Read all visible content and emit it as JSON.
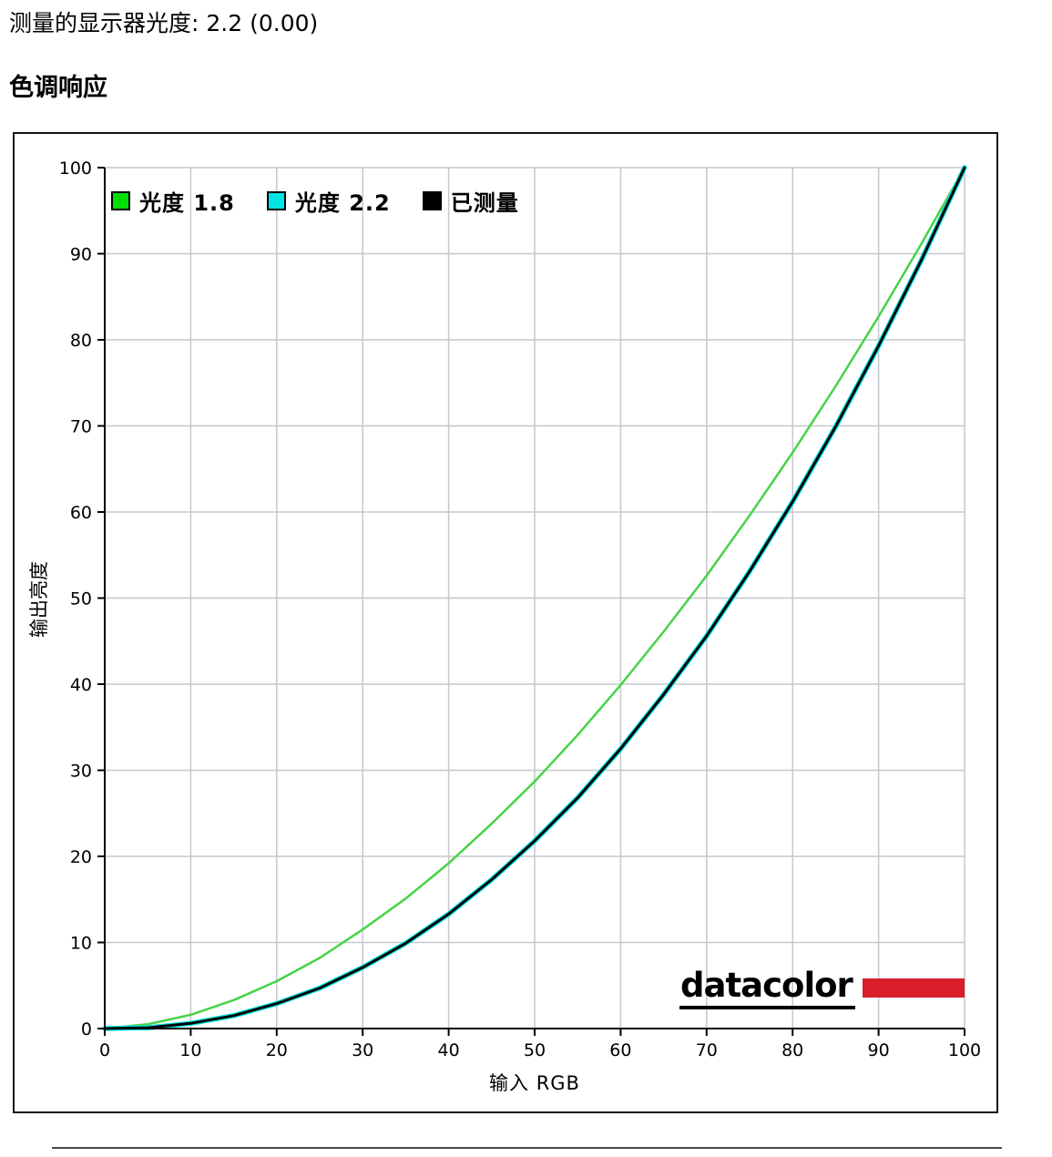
{
  "header": {
    "measured_label": "测量的显示器光度:",
    "measured_value": "2.2 (0.00)",
    "section_title": "色调响应"
  },
  "chart_data": {
    "type": "line",
    "title": "",
    "xlabel": "输入 RGB",
    "ylabel": "输出亮度",
    "xlim": [
      0,
      100
    ],
    "ylim": [
      0,
      100
    ],
    "xticks": [
      0,
      10,
      20,
      30,
      40,
      50,
      60,
      70,
      80,
      90,
      100
    ],
    "yticks": [
      0,
      10,
      20,
      30,
      40,
      50,
      60,
      70,
      80,
      90,
      100
    ],
    "grid": true,
    "grid_color": "#c4c8cc",
    "legend_position": "top-left",
    "legend": [
      {
        "label": "光度 1.8",
        "color": "#00dd00"
      },
      {
        "label": "光度 2.2",
        "color": "#00e5e5"
      },
      {
        "label": "已测量",
        "color": "#000000"
      }
    ],
    "x": [
      0,
      5,
      10,
      15,
      20,
      25,
      30,
      35,
      40,
      45,
      50,
      55,
      60,
      65,
      70,
      75,
      80,
      85,
      90,
      95,
      100
    ],
    "series": [
      {
        "name": "光度 1.8",
        "color": "#46d346",
        "width": 2.5,
        "values": [
          0,
          0.5,
          1.6,
          3.3,
          5.5,
          8.2,
          11.5,
          15.1,
          19.2,
          23.8,
          28.7,
          34.1,
          39.9,
          46.1,
          52.6,
          59.6,
          66.9,
          74.6,
          82.7,
          91.2,
          100
        ]
      },
      {
        "name": "光度 2.2",
        "color": "#00e5e5",
        "width": 5.5,
        "values": [
          0,
          0.1,
          0.6,
          1.5,
          2.9,
          4.7,
          7.1,
          9.9,
          13.3,
          17.3,
          21.8,
          26.8,
          32.5,
          38.8,
          45.6,
          53.1,
          61.2,
          69.9,
          79.3,
          89.3,
          100
        ]
      },
      {
        "name": "已测量",
        "color": "#000000",
        "width": 3,
        "values": [
          0,
          0.1,
          0.6,
          1.5,
          2.9,
          4.7,
          7.1,
          9.9,
          13.3,
          17.3,
          21.8,
          26.8,
          32.5,
          38.8,
          45.6,
          53.1,
          61.2,
          69.9,
          79.3,
          89.3,
          100
        ]
      }
    ]
  },
  "logo": {
    "text": "datacolor",
    "bar_color": "#d91e2a"
  }
}
